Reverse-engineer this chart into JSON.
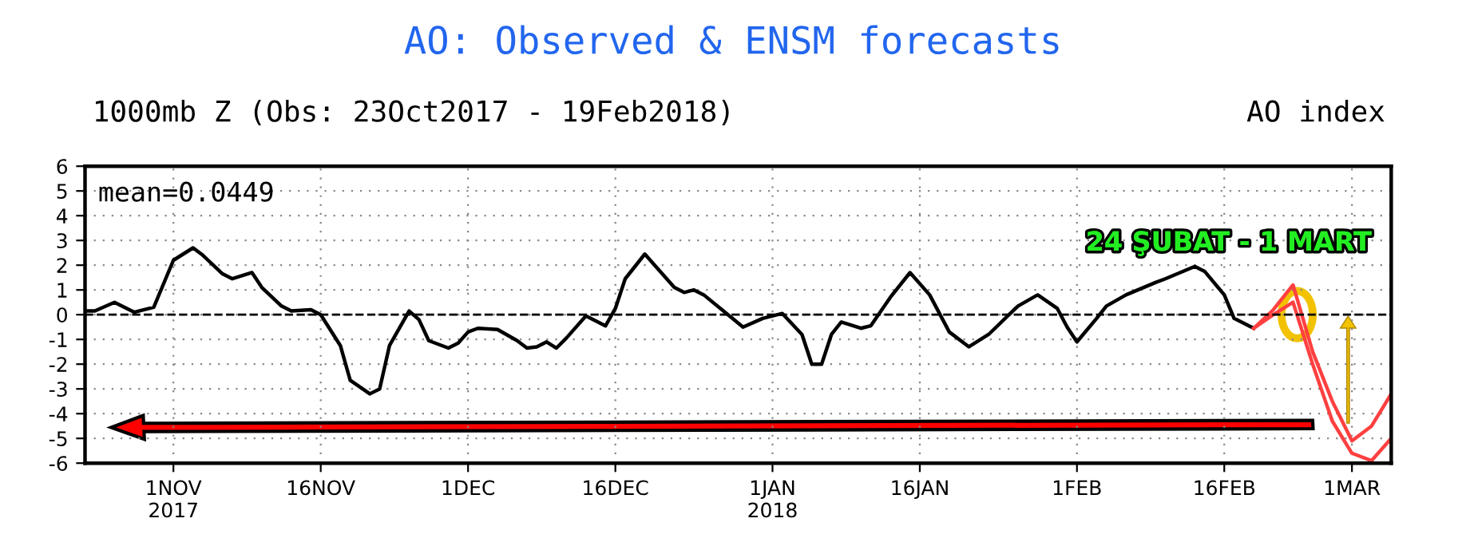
{
  "chart_data": {
    "type": "line",
    "title": "AO: Observed & ENSM forecasts",
    "subtitle": "1000mb Z (Obs: 23Oct2017 - 19Feb2018)",
    "annotations": [
      "AO index",
      "mean=0.0449",
      "24 ŞUBAT - 1 MART"
    ],
    "xlim": [
      "2017-10-23",
      "2018-03-05"
    ],
    "xticks": [
      {
        "value": "2017-11-01",
        "label": "1NOV\n2017"
      },
      {
        "value": "2017-11-16",
        "label": "16NOV"
      },
      {
        "value": "2017-12-01",
        "label": "1DEC"
      },
      {
        "value": "2017-12-16",
        "label": "16DEC"
      },
      {
        "value": "2018-01-01",
        "label": "1JAN\n2018"
      },
      {
        "value": "2018-01-16",
        "label": "16JAN"
      },
      {
        "value": "2018-02-01",
        "label": "1FEB"
      },
      {
        "value": "2018-02-16",
        "label": "16FEB"
      },
      {
        "value": "2018-03-01",
        "label": "1MAR"
      }
    ],
    "ylim": [
      -6,
      6
    ],
    "yticks": [
      -6,
      -5,
      -4,
      -3,
      -2,
      -1,
      0,
      1,
      2,
      3,
      4,
      5,
      6
    ],
    "grid": true,
    "ref_lines": [
      {
        "axis": "y",
        "value": 0,
        "color": "#000000",
        "line_style": "dashed"
      }
    ],
    "series": [
      {
        "color": "#000000",
        "x": [
          "2017-10-23",
          "2017-10-24",
          "2017-10-26",
          "2017-10-28",
          "2017-10-30",
          "2017-11-01",
          "2017-11-03",
          "2017-11-04",
          "2017-11-06",
          "2017-11-07",
          "2017-11-09",
          "2017-11-10",
          "2017-11-12",
          "2017-11-13",
          "2017-11-15",
          "2017-11-16",
          "2017-11-18",
          "2017-11-19",
          "2017-11-21",
          "2017-11-22",
          "2017-11-23",
          "2017-11-25",
          "2017-11-26",
          "2017-11-27",
          "2017-11-29",
          "2017-11-30",
          "2017-12-01",
          "2017-12-02",
          "2017-12-04",
          "2017-12-06",
          "2017-12-07",
          "2017-12-08",
          "2017-12-09",
          "2017-12-10",
          "2017-12-11",
          "2017-12-13",
          "2017-12-15",
          "2017-12-16",
          "2017-12-17",
          "2017-12-19",
          "2017-12-20",
          "2017-12-22",
          "2017-12-23",
          "2017-12-24",
          "2017-12-25",
          "2017-12-27",
          "2017-12-29",
          "2017-12-31",
          "2018-01-02",
          "2018-01-04",
          "2018-01-05",
          "2018-01-06",
          "2018-01-07",
          "2018-01-08",
          "2018-01-10",
          "2018-01-11",
          "2018-01-13",
          "2018-01-15",
          "2018-01-17",
          "2018-01-19",
          "2018-01-21",
          "2018-01-23",
          "2018-01-26",
          "2018-01-28",
          "2018-01-30",
          "2018-01-31",
          "2018-02-01",
          "2018-02-03",
          "2018-02-04",
          "2018-02-06",
          "2018-02-09",
          "2018-02-10",
          "2018-02-13",
          "2018-02-14",
          "2018-02-16",
          "2018-02-17",
          "2018-02-19"
        ],
        "values": [
          0.15,
          0.15,
          0.5,
          0.1,
          0.3,
          2.2,
          2.7,
          2.4,
          1.65,
          1.45,
          1.7,
          1.1,
          0.35,
          0.15,
          0.2,
          0,
          -1.25,
          -2.65,
          -3.2,
          -3,
          -1.25,
          0.15,
          -0.2,
          -1.05,
          -1.35,
          -1.15,
          -0.7,
          -0.55,
          -0.6,
          -1.05,
          -1.35,
          -1.3,
          -1.1,
          -1.35,
          -0.95,
          -0.05,
          -0.45,
          0.25,
          1.45,
          2.45,
          2,
          1.1,
          0.9,
          1,
          0.8,
          0.15,
          -0.5,
          -0.15,
          0.05,
          -0.8,
          -2,
          -2,
          -0.8,
          -0.3,
          -0.55,
          -0.45,
          0.7,
          1.7,
          0.8,
          -0.7,
          -1.3,
          -0.8,
          0.35,
          0.8,
          0.25,
          -0.5,
          -1.1,
          -0.15,
          0.35,
          0.8,
          1.3,
          1.45,
          1.95,
          1.75,
          0.8,
          -0.15,
          -0.55
        ]
      },
      {
        "color": "#ff4040",
        "x": [
          "2018-02-19",
          "2018-02-21",
          "2018-02-23",
          "2018-02-25",
          "2018-02-27",
          "2018-03-01",
          "2018-03-03",
          "2018-03-05"
        ],
        "values": [
          -0.55,
          0.2,
          1.2,
          -1.5,
          -3.5,
          -5.1,
          -4.5,
          -3.2
        ]
      },
      {
        "color": "#ff4040",
        "x": [
          "2018-02-19",
          "2018-02-21",
          "2018-02-23",
          "2018-02-25",
          "2018-02-27",
          "2018-03-01",
          "2018-03-03",
          "2018-03-05"
        ],
        "values": [
          -0.55,
          0.0,
          0.5,
          -2.0,
          -4.3,
          -5.6,
          -5.9,
          -5.0
        ]
      }
    ]
  }
}
